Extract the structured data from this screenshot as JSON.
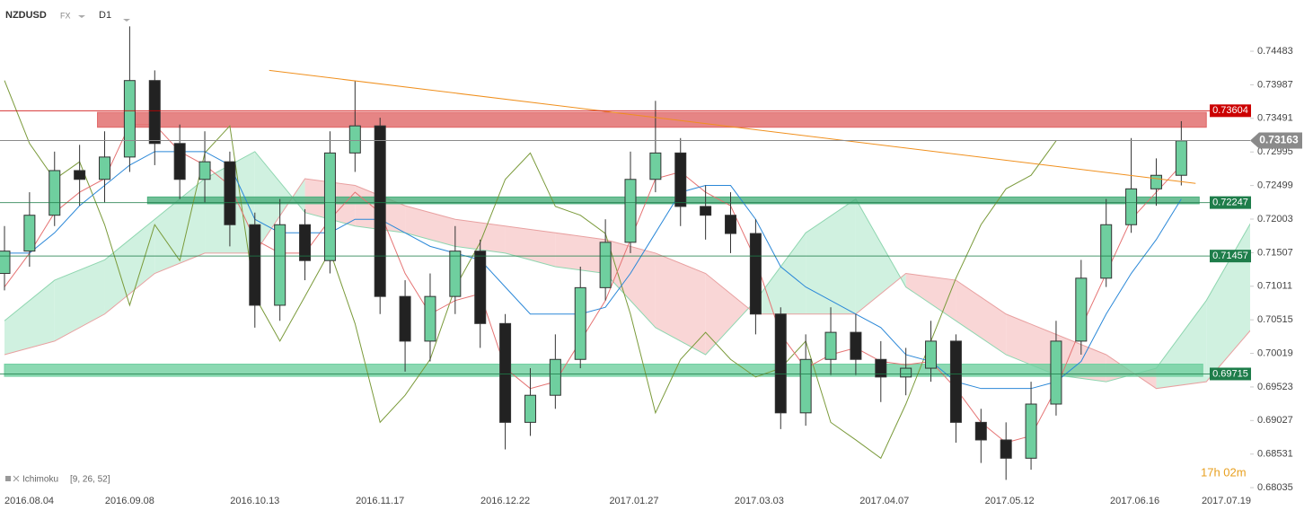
{
  "header": {
    "symbol": "NZDUSD",
    "market": "FX",
    "timeframe": "D1"
  },
  "indicator": {
    "name": "Ichimoku",
    "params": "[9, 26, 52]"
  },
  "countdown": "17h 02m",
  "chart_data": {
    "type": "candlestick",
    "x": [
      "2016.08.04",
      "2016.08.11",
      "2016.08.18",
      "2016.08.25",
      "2016.09.01",
      "2016.09.08",
      "2016.09.15",
      "2016.09.22",
      "2016.09.29",
      "2016.10.06",
      "2016.10.13",
      "2016.10.20",
      "2016.10.27",
      "2016.11.03",
      "2016.11.10",
      "2016.11.17",
      "2016.11.24",
      "2016.12.01",
      "2016.12.08",
      "2016.12.15",
      "2016.12.22",
      "2016.12.29",
      "2017.01.05",
      "2017.01.12",
      "2017.01.19",
      "2017.01.26",
      "2017.02.02",
      "2017.02.09",
      "2017.02.16",
      "2017.02.23",
      "2017.03.02",
      "2017.03.09",
      "2017.03.16",
      "2017.03.23",
      "2017.03.30",
      "2017.04.06",
      "2017.04.13",
      "2017.04.20",
      "2017.04.27",
      "2017.05.04",
      "2017.05.11",
      "2017.05.18",
      "2017.05.25",
      "2017.06.01",
      "2017.06.08",
      "2017.06.15",
      "2017.06.22",
      "2017.06.29"
    ],
    "open": [
      0.712,
      0.7153,
      0.7206,
      0.7272,
      0.7259,
      0.7292,
      0.7405,
      0.7312,
      0.7259,
      0.7285,
      0.7192,
      0.7073,
      0.7192,
      0.7139,
      0.7298,
      0.7338,
      0.7086,
      0.702,
      0.7086,
      0.7153,
      0.7046,
      0.69,
      0.694,
      0.6993,
      0.7099,
      0.7166,
      0.7259,
      0.7298,
      0.7219,
      0.7206,
      0.7179,
      0.706,
      0.6914,
      0.6993,
      0.7033,
      0.6993,
      0.6967,
      0.698,
      0.702,
      0.69,
      0.6874,
      0.6847,
      0.6927,
      0.702,
      0.7113,
      0.7192,
      0.7245,
      0.7265
    ],
    "high": [
      0.719,
      0.724,
      0.73,
      0.731,
      0.733,
      0.7485,
      0.742,
      0.734,
      0.733,
      0.73,
      0.721,
      0.723,
      0.7215,
      0.733,
      0.7405,
      0.735,
      0.711,
      0.712,
      0.719,
      0.717,
      0.706,
      0.698,
      0.703,
      0.713,
      0.72,
      0.73,
      0.7375,
      0.732,
      0.725,
      0.724,
      0.72,
      0.707,
      0.703,
      0.707,
      0.706,
      0.702,
      0.701,
      0.705,
      0.703,
      0.692,
      0.69,
      0.696,
      0.705,
      0.714,
      0.723,
      0.732,
      0.729,
      0.7345
    ],
    "low": [
      0.7095,
      0.713,
      0.719,
      0.722,
      0.7225,
      0.727,
      0.728,
      0.723,
      0.7225,
      0.716,
      0.704,
      0.705,
      0.711,
      0.712,
      0.727,
      0.706,
      0.6975,
      0.699,
      0.706,
      0.701,
      0.686,
      0.688,
      0.692,
      0.698,
      0.708,
      0.715,
      0.724,
      0.719,
      0.717,
      0.715,
      0.703,
      0.689,
      0.6895,
      0.697,
      0.697,
      0.693,
      0.694,
      0.696,
      0.687,
      0.684,
      0.6815,
      0.683,
      0.691,
      0.7,
      0.71,
      0.718,
      0.722,
      0.725
    ],
    "close": [
      0.7153,
      0.7206,
      0.7272,
      0.7259,
      0.7292,
      0.7405,
      0.7312,
      0.7259,
      0.7285,
      0.7192,
      0.7073,
      0.7192,
      0.7139,
      0.7298,
      0.7338,
      0.7086,
      0.702,
      0.7086,
      0.7153,
      0.7046,
      0.69,
      0.694,
      0.6993,
      0.7099,
      0.7166,
      0.7259,
      0.7298,
      0.7219,
      0.7206,
      0.7179,
      0.706,
      0.6914,
      0.6993,
      0.7033,
      0.6993,
      0.6967,
      0.698,
      0.702,
      0.69,
      0.6874,
      0.6847,
      0.6927,
      0.702,
      0.7113,
      0.7192,
      0.7245,
      0.7265,
      0.7316
    ],
    "up_color": "#6fcf9f",
    "down_color": "#222222",
    "xlim": [
      "2016.08.04",
      "2017.07.19"
    ],
    "xticks": [
      "2016.08.04",
      "2016.09.08",
      "2016.10.13",
      "2016.11.17",
      "2016.12.22",
      "2017.01.27",
      "2017.03.03",
      "2017.04.07",
      "2017.05.12",
      "2017.06.16",
      "2017.07.19"
    ],
    "ylim": [
      0.6797,
      0.7524
    ],
    "yticks": [
      0.74483,
      0.73987,
      0.73491,
      0.72995,
      0.72499,
      0.72003,
      0.71507,
      0.71011,
      0.70515,
      0.70019,
      0.69523,
      0.69027,
      0.68531,
      0.68035
    ],
    "ichimoku": {
      "tenkan": {
        "color": "#e57373",
        "values": [
          0.71,
          0.715,
          0.721,
          0.724,
          0.726,
          0.734,
          0.734,
          0.73,
          0.728,
          0.725,
          0.717,
          0.715,
          0.715,
          0.72,
          0.724,
          0.721,
          0.712,
          0.706,
          0.708,
          0.709,
          0.698,
          0.695,
          0.696,
          0.702,
          0.708,
          0.717,
          0.726,
          0.727,
          0.724,
          0.722,
          0.714,
          0.703,
          0.698,
          0.7,
          0.701,
          0.699,
          0.6985,
          0.699,
          0.695,
          0.69,
          0.687,
          0.688,
          0.695,
          0.704,
          0.712,
          0.72,
          0.724,
          0.728
        ]
      },
      "kijun": {
        "color": "#2b88d8",
        "values": [
          0.715,
          0.715,
          0.718,
          0.722,
          0.725,
          0.728,
          0.73,
          0.73,
          0.73,
          0.728,
          0.72,
          0.718,
          0.718,
          0.718,
          0.72,
          0.72,
          0.718,
          0.716,
          0.715,
          0.714,
          0.71,
          0.706,
          0.706,
          0.706,
          0.707,
          0.712,
          0.718,
          0.724,
          0.725,
          0.725,
          0.72,
          0.713,
          0.71,
          0.708,
          0.706,
          0.704,
          0.7,
          0.699,
          0.696,
          0.695,
          0.695,
          0.695,
          0.696,
          0.699,
          0.706,
          0.712,
          0.717,
          0.723
        ]
      },
      "chikou": {
        "color": "#7a9a3a",
        "values": [
          0.7405,
          0.7312,
          0.7259,
          0.7285,
          0.7192,
          0.7073,
          0.7192,
          0.7139,
          0.7298,
          0.7338,
          0.7086,
          0.702,
          0.7086,
          0.7153,
          0.7046,
          0.69,
          0.694,
          0.6993,
          0.7099,
          0.7166,
          0.7259,
          0.7298,
          0.7219,
          0.7206,
          0.7179,
          0.706,
          0.6914,
          0.6993,
          0.7033,
          0.6993,
          0.6967,
          0.698,
          0.702,
          0.69,
          0.6874,
          0.6847,
          0.6927,
          0.702,
          0.7113,
          0.7192,
          0.7245,
          0.7265,
          0.7316,
          null,
          null,
          null,
          null,
          null
        ]
      },
      "cloud": {
        "x": [
          "2016.08.04",
          "2016.08.18",
          "2016.09.01",
          "2016.09.15",
          "2016.09.29",
          "2016.10.13",
          "2016.10.27",
          "2016.11.10",
          "2016.11.24",
          "2016.12.08",
          "2016.12.22",
          "2017.01.05",
          "2017.01.19",
          "2017.02.02",
          "2017.02.16",
          "2017.03.02",
          "2017.03.16",
          "2017.03.30",
          "2017.04.13",
          "2017.04.27",
          "2017.05.11",
          "2017.05.25",
          "2017.06.08",
          "2017.06.22",
          "2017.07.06",
          "2017.07.19"
        ],
        "span_a": [
          0.705,
          0.711,
          0.714,
          0.72,
          0.726,
          0.73,
          0.721,
          0.719,
          0.718,
          0.716,
          0.715,
          0.713,
          0.712,
          0.704,
          0.7,
          0.708,
          0.718,
          0.723,
          0.71,
          0.705,
          0.7,
          0.697,
          0.696,
          0.698,
          0.708,
          0.72
        ],
        "span_b": [
          0.7,
          0.702,
          0.706,
          0.712,
          0.715,
          0.715,
          0.726,
          0.725,
          0.722,
          0.72,
          0.719,
          0.718,
          0.717,
          0.715,
          0.712,
          0.706,
          0.706,
          0.706,
          0.712,
          0.711,
          0.706,
          0.703,
          0.7,
          0.695,
          0.696,
          0.704
        ],
        "up_color": "#c8eedb",
        "down_color": "#f8cfcf",
        "a_color": "#8fd6b0",
        "b_color": "#e8a0a0"
      }
    },
    "zones": [
      {
        "from": 0.7336,
        "to": 0.7358,
        "start": "2016.08.30",
        "end": "2017.07.06",
        "color": "#e06666"
      },
      {
        "from": 0.7223,
        "to": 0.7233,
        "start": "2016.09.13",
        "end": "2017.07.04",
        "color": "#4caf7d"
      },
      {
        "from": 0.6968,
        "to": 0.6986,
        "start": "2016.08.04",
        "end": "2017.07.05",
        "color": "#6fcf9f"
      }
    ],
    "levels": [
      {
        "value": 0.73604,
        "color": "#cc0000"
      },
      {
        "value": 0.72247,
        "color": "#1e7d4a"
      },
      {
        "value": 0.71457,
        "color": "#1e7d4a"
      },
      {
        "value": 0.69715,
        "color": "#1e7d4a"
      }
    ],
    "current": {
      "value": 0.73163,
      "color": "#8a8a8a"
    },
    "trendline": {
      "x": [
        "2016.10.17",
        "2017.07.03"
      ],
      "y": [
        0.742,
        0.7253
      ],
      "color": "#f0901e"
    }
  }
}
